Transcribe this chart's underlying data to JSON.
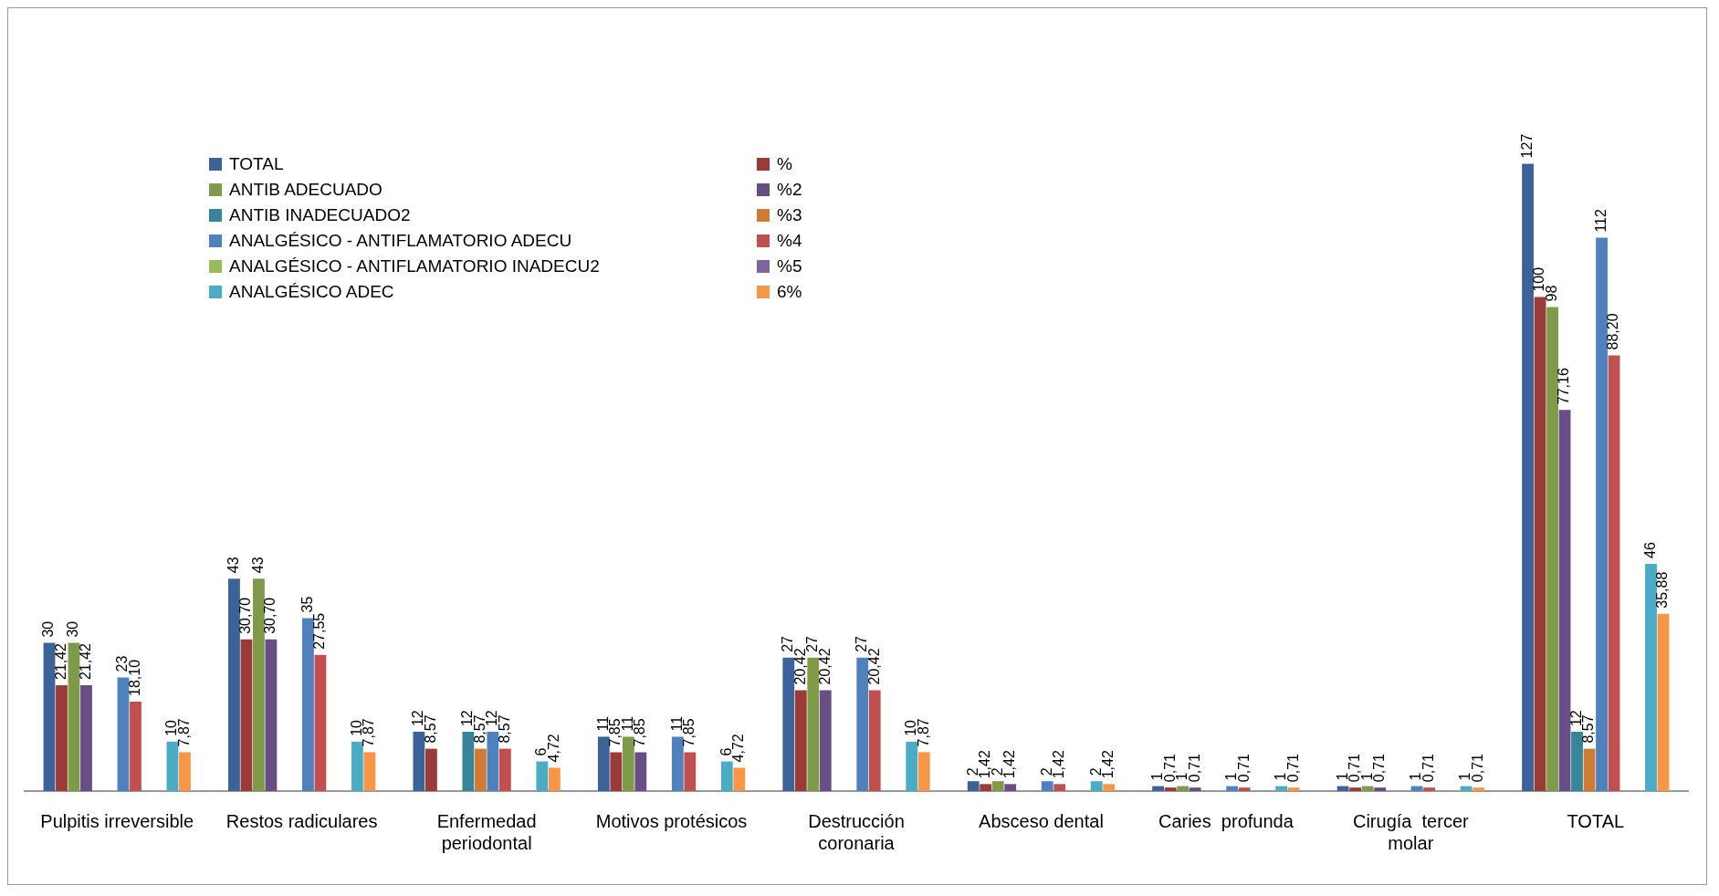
{
  "chart_data": {
    "type": "bar",
    "legend": "top left",
    "grid": false,
    "categories": [
      "Pulpitis irreversible",
      "Restos radiculares",
      "Enfermedad periodontal",
      "Motivos protésicos",
      "Destrucción coronaria",
      "Absceso dental",
      "Caries  profunda",
      "Cirugía  tercer molar",
      "TOTAL"
    ],
    "series": [
      {
        "name": "TOTAL",
        "color": "#3c6399",
        "values": [
          30,
          43,
          12,
          11,
          27,
          2,
          1,
          1,
          127
        ],
        "value_labels": [
          "30",
          "43",
          "12",
          "11",
          "27",
          "2",
          "1",
          "1",
          "127"
        ]
      },
      {
        "name": "%",
        "color": "#9b3b38",
        "values": [
          21.42,
          30.7,
          8.57,
          7.85,
          20.42,
          1.42,
          0.71,
          0.71,
          100
        ],
        "value_labels": [
          "21,42",
          "30,70",
          "8,57",
          "7,85",
          "20,42",
          "1,42",
          "0,71",
          "0,71",
          "100"
        ]
      },
      {
        "name": "ANTIB ADECUADO",
        "color": "#7f9a48",
        "values": [
          30,
          43,
          null,
          11,
          27,
          2,
          1,
          1,
          98
        ],
        "value_labels": [
          "30",
          "43",
          null,
          "11",
          "27",
          "2",
          "1",
          "1",
          "98"
        ]
      },
      {
        "name": "%2",
        "color": "#674f86",
        "values": [
          21.42,
          30.7,
          null,
          7.85,
          20.42,
          1.42,
          0.71,
          0.71,
          77.16
        ],
        "value_labels": [
          "21,42",
          "30,70",
          null,
          "7,85",
          "20,42",
          "1,42",
          "0,71",
          "0,71",
          "77,16"
        ]
      },
      {
        "name": "ANTIB INADECUADO2",
        "color": "#378599",
        "values": [
          null,
          null,
          12,
          null,
          null,
          null,
          null,
          null,
          12
        ],
        "value_labels": [
          null,
          null,
          "12",
          null,
          null,
          null,
          null,
          null,
          "12"
        ]
      },
      {
        "name": "%3",
        "color": "#d07b34",
        "values": [
          null,
          null,
          8.57,
          null,
          null,
          null,
          null,
          null,
          8.57
        ],
        "value_labels": [
          null,
          null,
          "8,57",
          null,
          null,
          null,
          null,
          null,
          "8,57"
        ]
      },
      {
        "name": "ANALGÉSICO - ANTIFLAMATORIO ADECU",
        "color": "#4f81bd",
        "values": [
          23,
          35,
          12,
          11,
          27,
          2,
          1,
          1,
          112
        ],
        "value_labels": [
          "23",
          "35",
          "12",
          "11",
          "27",
          "2",
          "1",
          "1",
          "112"
        ]
      },
      {
        "name": "%4",
        "color": "#c0504d",
        "values": [
          18.1,
          27.55,
          8.57,
          7.85,
          20.42,
          1.42,
          0.71,
          0.71,
          88.2
        ],
        "value_labels": [
          "18,10",
          "27,55",
          "8,57",
          "7,85",
          "20,42",
          "1,42",
          "0,71",
          "0,71",
          "88,20"
        ]
      },
      {
        "name": "ANALGÉSICO - ANTIFLAMATORIO INADECU2",
        "color": "#9bbb59",
        "values": [
          null,
          null,
          null,
          null,
          null,
          null,
          null,
          null,
          null
        ]
      },
      {
        "name": "%5",
        "color": "#8064a2",
        "values": [
          null,
          null,
          null,
          null,
          null,
          null,
          null,
          null,
          null
        ]
      },
      {
        "name": "ANALGÉSICO ADEC",
        "color": "#4bacc6",
        "values": [
          10,
          10,
          6,
          6,
          10,
          2,
          1,
          1,
          46
        ],
        "value_labels": [
          "10",
          "10",
          "6",
          "6",
          "10",
          "2",
          "1",
          "1",
          "46"
        ]
      },
      {
        "name": "6%",
        "color": "#f79646",
        "values": [
          7.87,
          7.87,
          4.72,
          4.72,
          7.87,
          1.42,
          0.71,
          0.71,
          35.88
        ],
        "value_labels": [
          "7,87",
          "7,87",
          "4,72",
          "4,72",
          "7,87",
          "1,42",
          "0,71",
          "0,71",
          "35,88"
        ]
      }
    ]
  }
}
